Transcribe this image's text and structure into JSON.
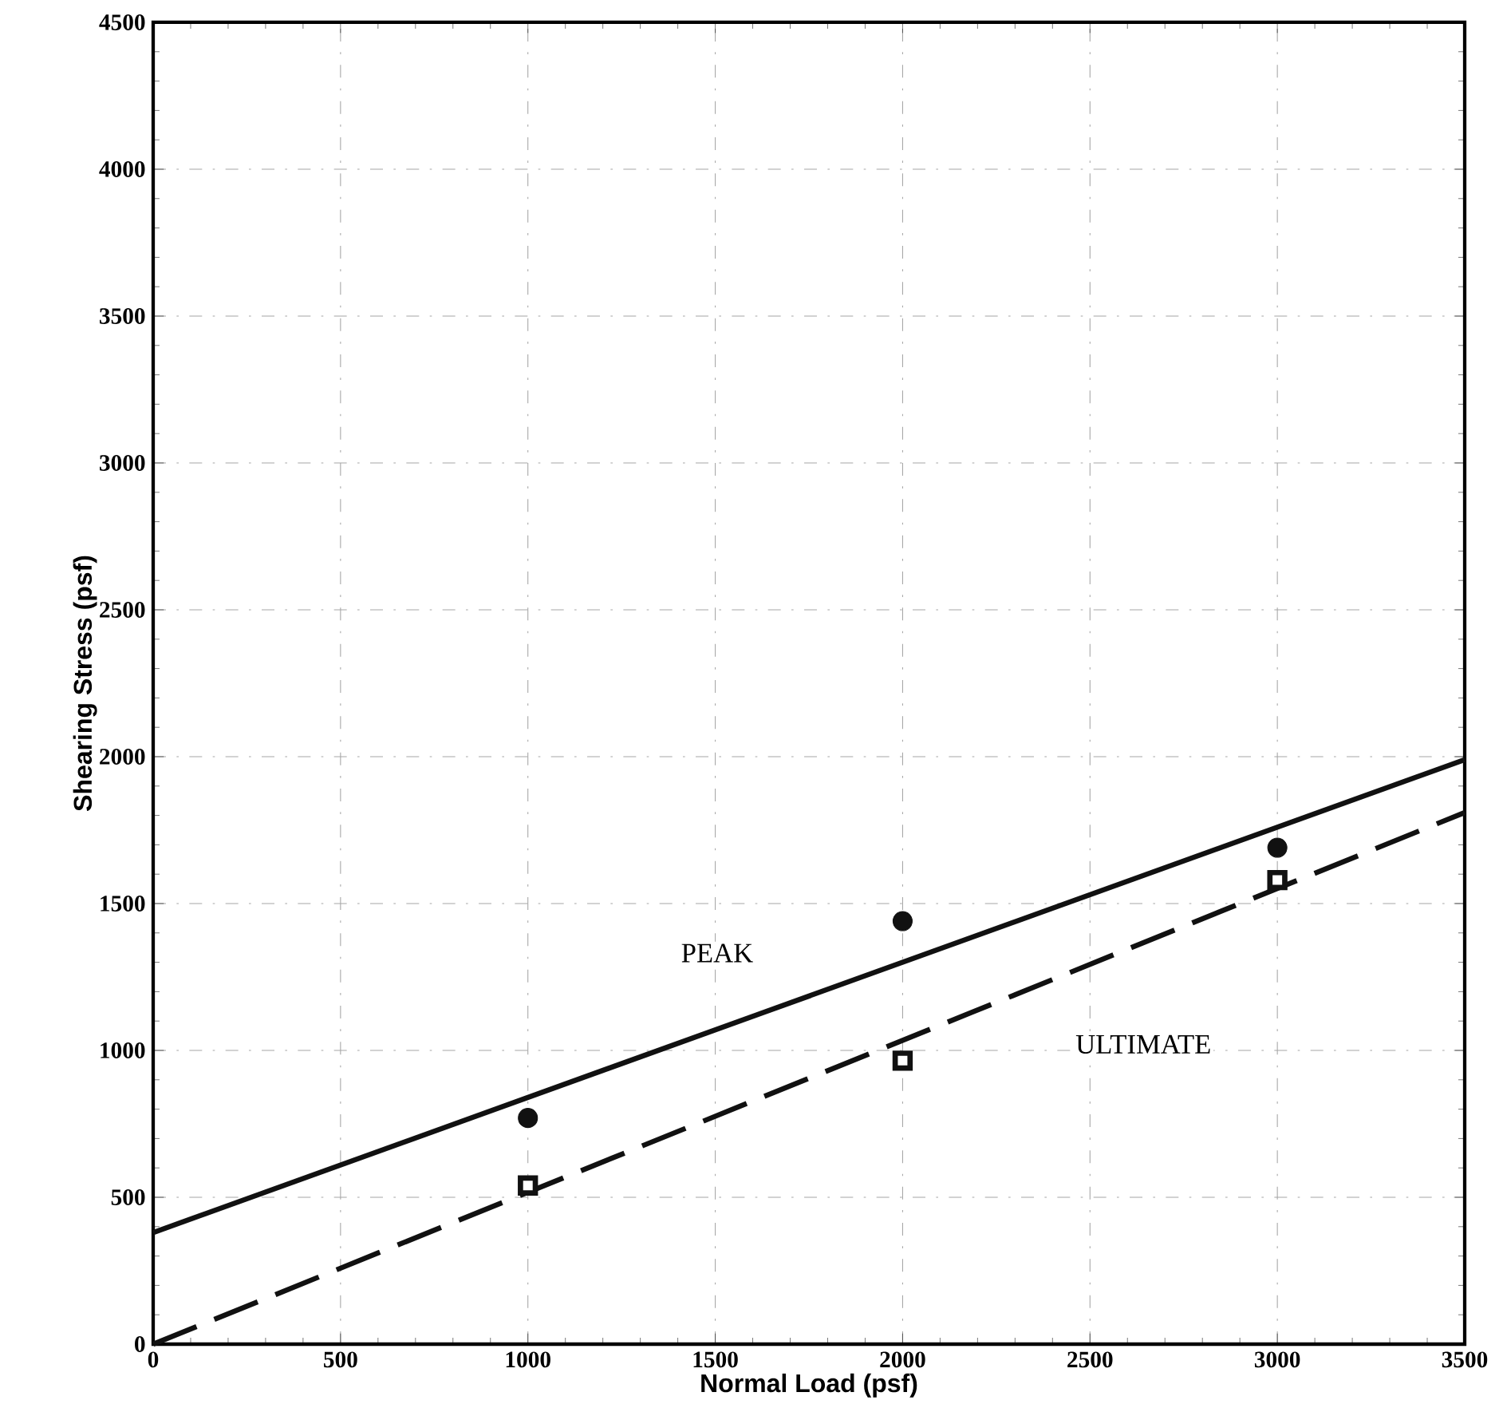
{
  "chart_data": {
    "type": "scatter",
    "xlabel": "Normal Load (psf)",
    "ylabel": "Shearing Stress (psf)",
    "xlim": [
      0,
      3500
    ],
    "ylim": [
      0,
      4500
    ],
    "xticks": [
      0,
      500,
      1000,
      1500,
      2000,
      2500,
      3000,
      3500
    ],
    "yticks": [
      0,
      500,
      1000,
      1500,
      2000,
      2500,
      3000,
      3500,
      4000,
      4500
    ],
    "grid": true,
    "series": [
      {
        "color": "#111111",
        "marker": "circle",
        "x": [
          1000,
          2000,
          3000
        ],
        "values": [
          770,
          1440,
          1690
        ]
      },
      {
        "color": "#111111",
        "marker": "square",
        "x": [
          1000,
          2000,
          3000
        ],
        "values": [
          540,
          965,
          1580
        ]
      },
      {
        "type": "line",
        "color": "#111111",
        "line_style": "solid",
        "x": [
          0,
          3500
        ],
        "values": [
          380,
          1990
        ]
      },
      {
        "type": "line",
        "color": "#111111",
        "line_style": "dashed",
        "x": [
          0,
          3500
        ],
        "values": [
          0,
          1810
        ]
      }
    ],
    "annotations": [
      "PEAK",
      "ULTIMATE"
    ]
  }
}
